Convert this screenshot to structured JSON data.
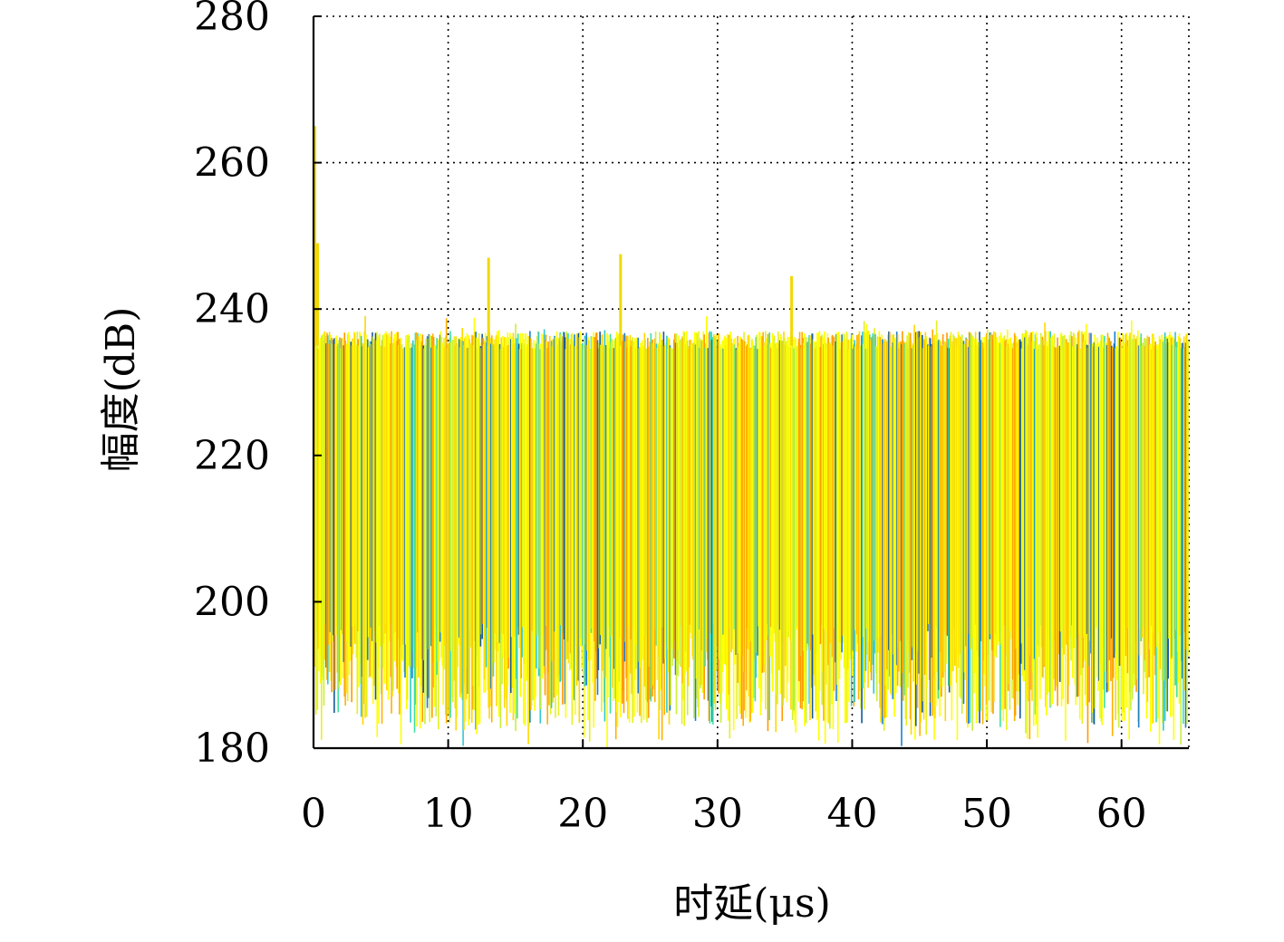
{
  "chart_data": {
    "type": "line",
    "title": "",
    "xlabel": "时延(μs)",
    "ylabel": "幅度(dB)",
    "xlim": [
      0,
      65
    ],
    "ylim": [
      180,
      280
    ],
    "xticks": [
      0,
      10,
      20,
      30,
      40,
      50,
      60
    ],
    "yticks": [
      180,
      200,
      220,
      240,
      260,
      280
    ],
    "grid": true,
    "grid_style": "dotted",
    "series_description_note": "",
    "band": {
      "upper_typical": 237,
      "lower_typical": 190,
      "floor": 180
    },
    "peaks": [
      {
        "x": 0.1,
        "y": 265
      },
      {
        "x": 0.3,
        "y": 249
      },
      {
        "x": 13.0,
        "y": 247
      },
      {
        "x": 22.8,
        "y": 247.5
      },
      {
        "x": 35.5,
        "y": 244.5
      }
    ],
    "colors": [
      "#ffff00",
      "#e6f020",
      "#c8f03c",
      "#ffd700",
      "#ffb000",
      "#ff9a00",
      "#3ee0a0",
      "#30c8d0",
      "#1b7fd0",
      "#14589a"
    ]
  }
}
